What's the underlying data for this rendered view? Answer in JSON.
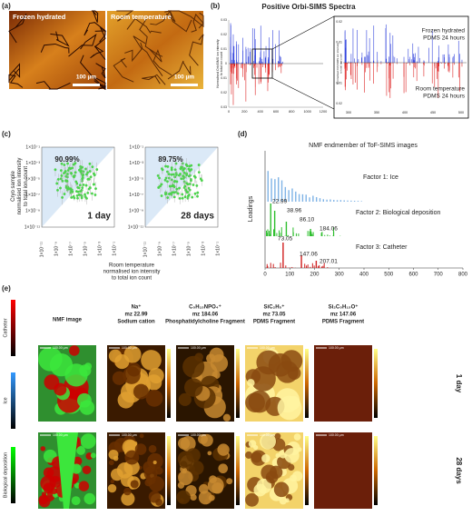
{
  "panel_a": {
    "label": "(a)",
    "images": [
      {
        "title": "Frozen hydrated",
        "scale": "100 µm"
      },
      {
        "title": "Room temperature",
        "scale": "100 µm"
      }
    ]
  },
  "panel_b": {
    "label": "(b)",
    "title": "Positive Orbi-SIMS Spectra",
    "y_label": [
      "Normalised OrbiSIMS ion intensity",
      "to total ion count"
    ],
    "main_yticks": [
      0.03,
      0.02,
      0.01,
      0,
      0.01,
      0.02,
      0.03
    ],
    "main_xticks": [
      0,
      200,
      400,
      600,
      800,
      1000,
      1200
    ],
    "inset_yticks": [
      0.02,
      0.01,
      0,
      0.01,
      0.02
    ],
    "inset_xticks": [
      300,
      350,
      400,
      450,
      500
    ],
    "upper": [
      "Frozen hydrated",
      "PDMS 24 hours"
    ],
    "lower": [
      "Room temperature",
      "PDMS 24 hours"
    ]
  },
  "panel_c": {
    "label": "(c)",
    "y_label": [
      "Cryo sample",
      "normalised ion intensity",
      "to total ion count"
    ],
    "x_label": [
      "Room temperature",
      "normalised ion intensity",
      "to total ion count"
    ],
    "ticks": [
      "1×10⁻¹",
      "1×10⁻³",
      "1×10⁻⁵",
      "1×10⁻⁷",
      "1×10⁻⁹",
      "1×10⁻¹¹"
    ],
    "plots": [
      {
        "percent": "90.99%",
        "time": "1 day"
      },
      {
        "percent": "89.75%",
        "time": "28 days"
      }
    ]
  },
  "panel_d": {
    "label": "(d)",
    "title": "NMF endmember of ToF-SIMS images",
    "y_label": "Loadings",
    "xticks": [
      0,
      100,
      200,
      300,
      400,
      500,
      600,
      700,
      800
    ],
    "factors": [
      "Factor 1: Ice",
      "Factor 2: Biological deposition",
      "Factor 3: Catheter"
    ],
    "peaks2": [
      "22.99",
      "38.96",
      "86.10",
      "184.06"
    ],
    "peaks3": [
      "73.05",
      "147.06",
      "207.01"
    ]
  },
  "panel_e": {
    "label": "(e)",
    "columns": [
      [
        "NMF image"
      ],
      [
        "Na⁺",
        "mz 22.99",
        "Sodium cation"
      ],
      [
        "C₅H₁₅NPO₄⁺",
        "mz 184.06",
        "Phosphatidylcholine Fragment"
      ],
      [
        "SiC₂H₅⁺",
        "mz 73.05",
        "PDMS Fragment"
      ],
      [
        "Si₂C₅H₁₅O⁺",
        "mz 147.06",
        "PDMS Fragment"
      ]
    ],
    "rows": [
      "1 day",
      "28 days"
    ],
    "colorbars": [
      "Catheter",
      "Ice",
      "Biological deposition"
    ],
    "scale": "100.00 µm"
  }
}
